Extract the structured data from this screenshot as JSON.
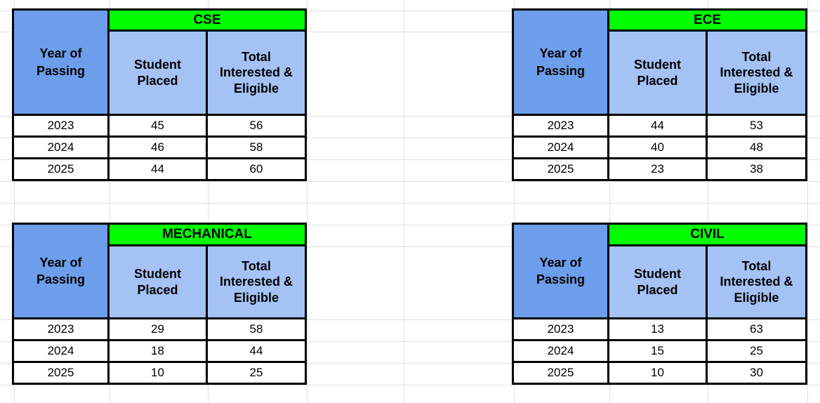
{
  "sheet": {
    "labels": {
      "year_header": "Year of Passing",
      "placed_header": "Student Placed",
      "eligible_header": "Total Interested & Eligible"
    },
    "colors": {
      "title_bg": "#00ff00",
      "year_header_bg": "#6d9eeb",
      "col_header_bg": "#a4c2f4",
      "border": "#000000",
      "gridline": "#e0e0e0",
      "cell_bg": "#ffffff"
    },
    "tables": [
      {
        "title": "CSE",
        "rows": [
          {
            "year": "2023",
            "placed": "45",
            "eligible": "56"
          },
          {
            "year": "2024",
            "placed": "46",
            "eligible": "58"
          },
          {
            "year": "2025",
            "placed": "44",
            "eligible": "60"
          }
        ]
      },
      {
        "title": "ECE",
        "rows": [
          {
            "year": "2023",
            "placed": "44",
            "eligible": "53"
          },
          {
            "year": "2024",
            "placed": "40",
            "eligible": "48"
          },
          {
            "year": "2025",
            "placed": "23",
            "eligible": "38"
          }
        ]
      },
      {
        "title": "MECHANICAL",
        "rows": [
          {
            "year": "2023",
            "placed": "29",
            "eligible": "58"
          },
          {
            "year": "2024",
            "placed": "18",
            "eligible": "44"
          },
          {
            "year": "2025",
            "placed": "10",
            "eligible": "25"
          }
        ]
      },
      {
        "title": "CIVIL",
        "rows": [
          {
            "year": "2023",
            "placed": "13",
            "eligible": "63"
          },
          {
            "year": "2024",
            "placed": "15",
            "eligible": "25"
          },
          {
            "year": "2025",
            "placed": "10",
            "eligible": "30"
          }
        ]
      }
    ]
  }
}
